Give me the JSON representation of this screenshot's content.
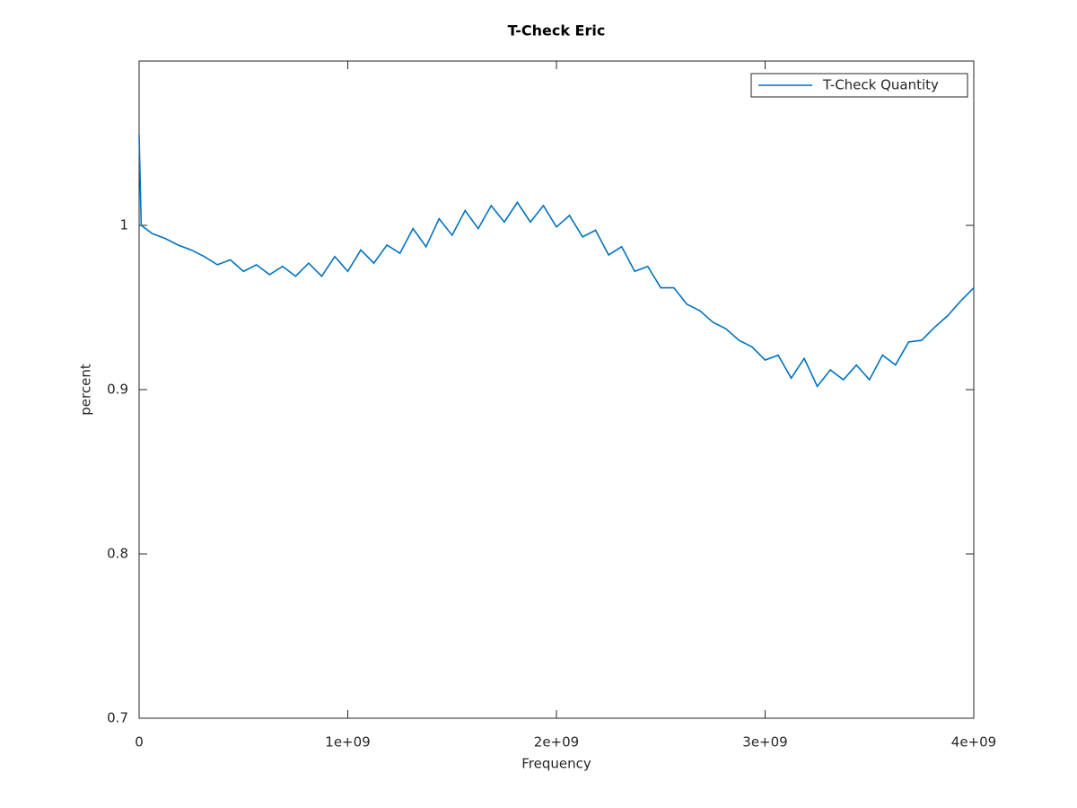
{
  "chart_data": {
    "type": "line",
    "title": "T-Check Eric",
    "xlabel": "Frequency",
    "ylabel": "percent",
    "x": [
      0,
      10000000,
      62500000,
      125000000,
      187500000,
      250000000,
      312500000,
      375000000,
      437500000,
      500000000,
      562500000,
      625000000,
      687500000,
      750000000,
      812500000,
      875000000,
      937500000,
      1000000000,
      1062500000,
      1125000000,
      1187500000,
      1250000000,
      1312500000,
      1375000000,
      1437500000,
      1500000000,
      1562500000,
      1625000000,
      1687500000,
      1750000000,
      1812500000,
      1875000000,
      1937500000,
      2000000000,
      2062500000,
      2125000000,
      2187500000,
      2250000000,
      2312500000,
      2375000000,
      2437500000,
      2500000000,
      2562500000,
      2625000000,
      2687500000,
      2750000000,
      2812500000,
      2875000000,
      2937500000,
      3000000000,
      3062500000,
      3125000000,
      3187500000,
      3250000000,
      3312500000,
      3375000000,
      3437500000,
      3500000000,
      3562500000,
      3625000000,
      3687500000,
      3750000000,
      3812500000,
      3875000000,
      3937500000,
      4000000000
    ],
    "series": [
      {
        "name": "T-Check Quantity",
        "color": "#0072bd",
        "values": [
          1.055,
          1.0,
          0.995,
          0.992,
          0.988,
          0.985,
          0.981,
          0.976,
          0.979,
          0.972,
          0.976,
          0.97,
          0.975,
          0.969,
          0.977,
          0.969,
          0.981,
          0.972,
          0.985,
          0.977,
          0.988,
          0.983,
          0.998,
          0.987,
          1.004,
          0.994,
          1.009,
          0.998,
          1.012,
          1.002,
          1.014,
          1.002,
          1.012,
          0.999,
          1.006,
          0.993,
          0.997,
          0.982,
          0.987,
          0.972,
          0.975,
          0.962,
          0.962,
          0.952,
          0.948,
          0.941,
          0.937,
          0.93,
          0.926,
          0.918,
          0.921,
          0.907,
          0.919,
          0.902,
          0.912,
          0.906,
          0.915,
          0.906,
          0.921,
          0.915,
          0.929,
          0.93,
          0.938,
          0.945,
          0.954,
          0.962
        ]
      }
    ],
    "xlim": [
      0,
      4000000000
    ],
    "xticks": [
      0,
      {
        "value": 1000000000,
        "label": "1e+09"
      },
      {
        "value": 2000000000,
        "label": "2e+09"
      },
      {
        "value": 3000000000,
        "label": "3e+09"
      },
      {
        "value": 4000000000,
        "label": "4e+09"
      }
    ],
    "ylim": [
      0.7,
      1.1
    ],
    "yticks": [
      0.7,
      0.8,
      0.9,
      1
    ],
    "legend": "top-right",
    "grid": false
  }
}
